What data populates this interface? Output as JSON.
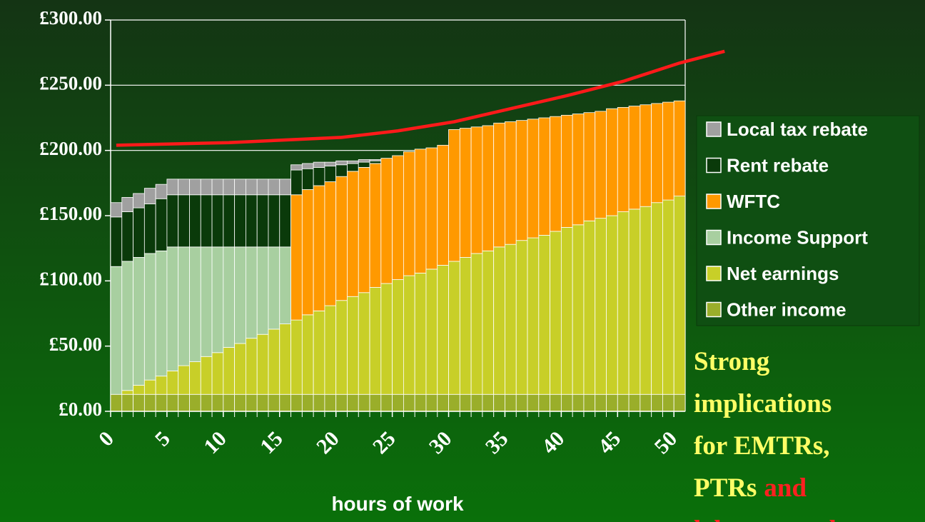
{
  "chart_data": {
    "type": "stacked-bar",
    "x_label": "hours of work",
    "categories": [
      0,
      1,
      2,
      3,
      4,
      5,
      6,
      7,
      8,
      9,
      10,
      11,
      12,
      13,
      14,
      15,
      16,
      17,
      18,
      19,
      20,
      21,
      22,
      23,
      24,
      25,
      26,
      27,
      28,
      29,
      30,
      31,
      32,
      33,
      34,
      35,
      36,
      37,
      38,
      39,
      40,
      41,
      42,
      43,
      44,
      45,
      46,
      47,
      48,
      49,
      50
    ],
    "xticks": [
      0,
      5,
      10,
      15,
      20,
      25,
      30,
      35,
      40,
      45,
      50
    ],
    "ylim": [
      0,
      300
    ],
    "yticks": [
      {
        "value": 0,
        "label": "£0.00"
      },
      {
        "value": 50,
        "label": "£50.00"
      },
      {
        "value": 100,
        "label": "£100.00"
      },
      {
        "value": 150,
        "label": "£150.00"
      },
      {
        "value": 200,
        "label": "£200.00"
      },
      {
        "value": 250,
        "label": "£250.00"
      },
      {
        "value": 300,
        "label": "£300.00"
      }
    ],
    "grid": true,
    "series": [
      {
        "name": "Other income",
        "color": "#9aae2a",
        "values": [
          13,
          13,
          13,
          13,
          13,
          13,
          13,
          13,
          13,
          13,
          13,
          13,
          13,
          13,
          13,
          13,
          13,
          13,
          13,
          13,
          13,
          13,
          13,
          13,
          13,
          13,
          13,
          13,
          13,
          13,
          13,
          13,
          13,
          13,
          13,
          13,
          13,
          13,
          13,
          13,
          13,
          13,
          13,
          13,
          13,
          13,
          13,
          13,
          13,
          13,
          13
        ]
      },
      {
        "name": "Net earnings",
        "color": "#c8cf28",
        "values": [
          0,
          3,
          7,
          11,
          14,
          18,
          22,
          25,
          29,
          32,
          36,
          39,
          43,
          46,
          50,
          54,
          57,
          61,
          64,
          68,
          72,
          75,
          78,
          82,
          85,
          88,
          91,
          93,
          96,
          99,
          102,
          105,
          108,
          110,
          113,
          115,
          118,
          120,
          122,
          125,
          128,
          130,
          133,
          135,
          137,
          140,
          142,
          144,
          147,
          149,
          152
        ]
      },
      {
        "name": "Income Support",
        "color": "#a8cfa0",
        "values": [
          98,
          99,
          98,
          97,
          96,
          95,
          91,
          88,
          84,
          81,
          77,
          74,
          70,
          67,
          63,
          59,
          0,
          0,
          0,
          0,
          0,
          0,
          0,
          0,
          0,
          0,
          0,
          0,
          0,
          0,
          0,
          0,
          0,
          0,
          0,
          0,
          0,
          0,
          0,
          0,
          0,
          0,
          0,
          0,
          0,
          0,
          0,
          0,
          0,
          0,
          0
        ]
      },
      {
        "name": "WFTC",
        "color": "#ff9900",
        "values": [
          0,
          0,
          0,
          0,
          0,
          0,
          0,
          0,
          0,
          0,
          0,
          0,
          0,
          0,
          0,
          0,
          96,
          96,
          96,
          95,
          95,
          96,
          96,
          95,
          96,
          95,
          95,
          95,
          93,
          92,
          101,
          99,
          97,
          96,
          95,
          94,
          92,
          91,
          90,
          88,
          86,
          85,
          83,
          82,
          82,
          80,
          79,
          78,
          76,
          75,
          73
        ]
      },
      {
        "name": "Rent rebate",
        "color": "#0a3a0a",
        "values": [
          38,
          38,
          38,
          38,
          40,
          40,
          40,
          40,
          40,
          40,
          40,
          40,
          40,
          40,
          40,
          40,
          19,
          16,
          14,
          12,
          9,
          6,
          4,
          2,
          0,
          0,
          0,
          0,
          0,
          0,
          0,
          0,
          0,
          0,
          0,
          0,
          0,
          0,
          0,
          0,
          0,
          0,
          0,
          0,
          0,
          0,
          0,
          0,
          0,
          0,
          0
        ]
      },
      {
        "name": "Local tax rebate",
        "color": "#a0a0a0",
        "values": [
          11,
          11,
          11,
          12,
          11,
          12,
          12,
          12,
          12,
          12,
          12,
          12,
          12,
          12,
          12,
          12,
          4,
          4,
          4,
          3,
          3,
          2,
          2,
          1,
          0,
          0,
          0,
          0,
          0,
          0,
          0,
          0,
          0,
          0,
          0,
          0,
          0,
          0,
          0,
          0,
          0,
          0,
          0,
          0,
          0,
          0,
          0,
          0,
          0,
          0,
          0
        ]
      }
    ],
    "line": {
      "type": "line",
      "color": "#ff1a1a",
      "x": [
        0,
        10,
        20,
        25,
        30,
        35,
        40,
        45,
        50,
        54
      ],
      "values": [
        204,
        206,
        210,
        215,
        222,
        232,
        242,
        253,
        267,
        276
      ]
    },
    "annotation": {
      "lines": [
        "Strong",
        "implications",
        "for EMTRs,",
        "PTRs"
      ],
      "color": "#ffff66",
      "emphasis": [
        "and",
        "labour supply"
      ],
      "emphasis_color": "#ff2020"
    }
  }
}
